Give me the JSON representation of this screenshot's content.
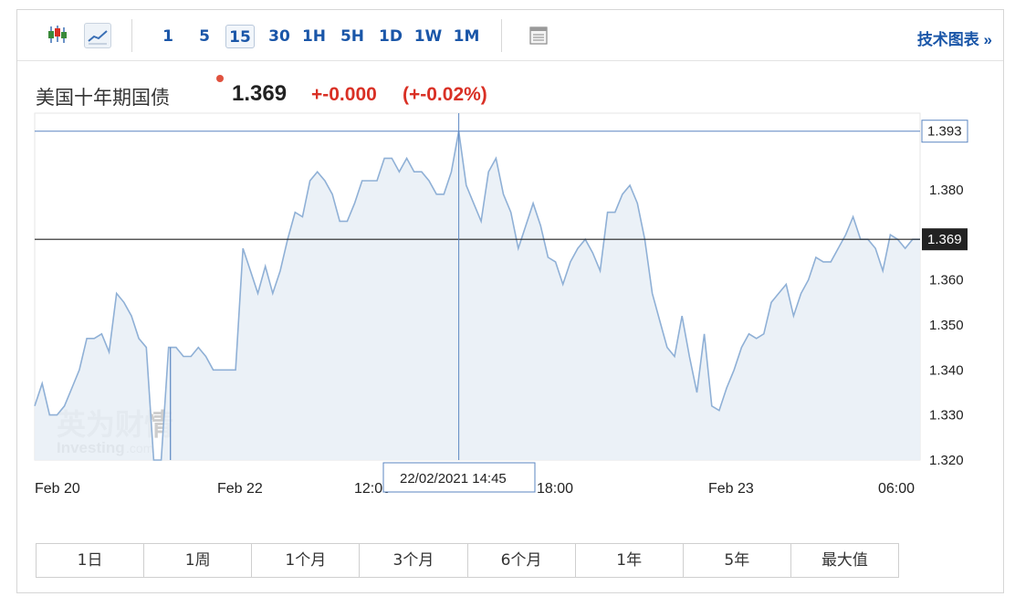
{
  "toolbar": {
    "chart_type_icons": [
      "candlestick-icon",
      "line-chart-icon"
    ],
    "intervals": [
      {
        "label": "1",
        "active": false
      },
      {
        "label": "5",
        "active": false
      },
      {
        "label": "15",
        "active": true
      },
      {
        "label": "30",
        "active": false
      },
      {
        "label": "1H",
        "active": false
      },
      {
        "label": "5H",
        "active": false
      },
      {
        "label": "1D",
        "active": false
      },
      {
        "label": "1W",
        "active": false
      },
      {
        "label": "1M",
        "active": false
      }
    ],
    "table_icon": "table-icon",
    "tech_chart_link": "技术图表 »"
  },
  "quote": {
    "name": "美国十年期国债",
    "price": "1.369",
    "change": "+-0.000",
    "change_pct": "(+-0.02%)"
  },
  "watermark": {
    "cn": "英为财情",
    "en": "Investing",
    "suffix": ".com"
  },
  "crosshair": {
    "date_label": "22/02/2021 14:45",
    "value_label": "1.393"
  },
  "current_value_label": "1.369",
  "ranges": [
    "1日",
    "1周",
    "1个月",
    "3个月",
    "6个月",
    "1年",
    "5年",
    "最大值"
  ],
  "colors": {
    "accent": "#1a56a8",
    "down": "#d93025",
    "line": "#8fb0d6",
    "area": "#e8eef6"
  },
  "chart_data": {
    "type": "area",
    "title": "",
    "xlabel": "",
    "ylabel": "",
    "ylim": [
      1.32,
      1.397
    ],
    "yticks": [
      1.32,
      1.33,
      1.34,
      1.35,
      1.36,
      1.38
    ],
    "xtick_labels": [
      "Feb 20",
      "Feb 22",
      "12:00",
      "18:00",
      "Feb 23",
      "06:00"
    ],
    "grid": false,
    "gap_marker_index": 19,
    "series": [
      {
        "values": [
          1.332,
          1.337,
          1.33,
          1.33,
          1.332,
          1.336,
          1.34,
          1.347,
          1.347,
          1.348,
          1.344,
          1.357,
          1.355,
          1.352,
          1.347,
          1.345,
          1.32,
          1.32,
          1.345,
          1.345,
          1.343,
          1.343,
          1.345,
          1.343,
          1.34,
          1.34,
          1.34,
          1.34,
          1.367,
          1.362,
          1.357,
          1.363,
          1.357,
          1.362,
          1.369,
          1.375,
          1.374,
          1.382,
          1.384,
          1.382,
          1.379,
          1.373,
          1.373,
          1.377,
          1.382,
          1.382,
          1.382,
          1.387,
          1.387,
          1.384,
          1.387,
          1.384,
          1.384,
          1.382,
          1.379,
          1.379,
          1.384,
          1.393,
          1.381,
          1.377,
          1.373,
          1.384,
          1.387,
          1.379,
          1.375,
          1.367,
          1.372,
          1.377,
          1.372,
          1.365,
          1.364,
          1.359,
          1.364,
          1.367,
          1.369,
          1.366,
          1.362,
          1.375,
          1.375,
          1.379,
          1.381,
          1.377,
          1.369,
          1.357,
          1.351,
          1.345,
          1.343,
          1.352,
          1.343,
          1.335,
          1.348,
          1.332,
          1.331,
          1.336,
          1.34,
          1.345,
          1.348,
          1.347,
          1.348,
          1.355,
          1.357,
          1.359,
          1.352,
          1.357,
          1.36,
          1.365,
          1.364,
          1.364,
          1.367,
          1.37,
          1.374,
          1.369,
          1.369,
          1.367,
          1.362,
          1.37,
          1.369,
          1.367,
          1.369,
          1.369
        ]
      }
    ]
  }
}
